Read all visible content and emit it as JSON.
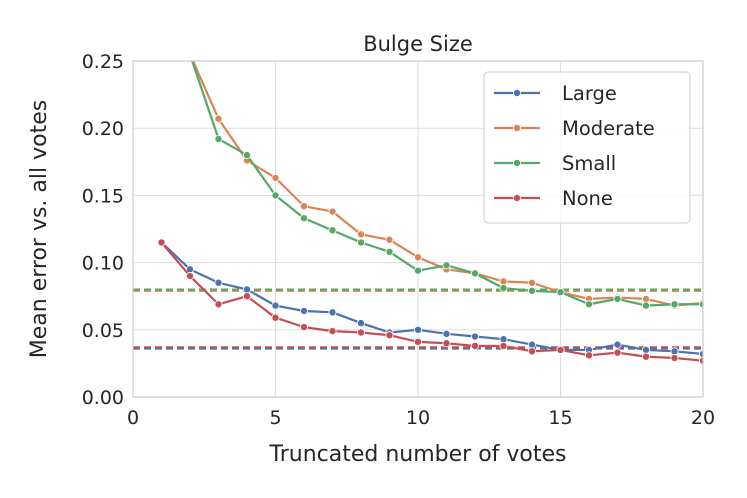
{
  "chart_data": {
    "type": "line",
    "title": "Bulge Size",
    "xlabel": "Truncated number of votes",
    "ylabel": "Mean error vs. all votes",
    "xlim": [
      0,
      20
    ],
    "ylim": [
      0,
      0.25
    ],
    "xticks": [
      0,
      5,
      10,
      15,
      20
    ],
    "xtick_labels": [
      "0",
      "5",
      "10",
      "15",
      "20"
    ],
    "yticks": [
      0,
      0.05,
      0.1,
      0.15,
      0.2,
      0.25
    ],
    "ytick_labels": [
      "0.00",
      "0.05",
      "0.10",
      "0.15",
      "0.20",
      "0.25"
    ],
    "grid": true,
    "legend_position": "top-right",
    "series": [
      {
        "name": "Large",
        "color": "#4c72b0",
        "x": [
          1,
          2,
          3,
          4,
          5,
          6,
          7,
          8,
          9,
          10,
          11,
          12,
          13,
          14,
          15,
          16,
          17,
          18,
          19,
          20
        ],
        "values": [
          0.115,
          0.095,
          0.085,
          0.08,
          0.068,
          0.064,
          0.063,
          0.055,
          0.048,
          0.05,
          0.047,
          0.045,
          0.043,
          0.039,
          0.035,
          0.035,
          0.039,
          0.035,
          0.034,
          0.032
        ],
        "baseline": 0.036
      },
      {
        "name": "Moderate",
        "color": "#dd8452",
        "x": [
          2,
          3,
          4,
          5,
          6,
          7,
          8,
          9,
          10,
          11,
          12,
          13,
          14,
          15,
          16,
          17,
          18,
          19,
          20
        ],
        "values": [
          0.255,
          0.207,
          0.176,
          0.163,
          0.142,
          0.138,
          0.121,
          0.117,
          0.104,
          0.095,
          0.092,
          0.086,
          0.085,
          0.078,
          0.073,
          0.074,
          0.073,
          0.068,
          0.07
        ],
        "baseline": 0.079
      },
      {
        "name": "Small",
        "color": "#55a868",
        "x": [
          2,
          3,
          4,
          5,
          6,
          7,
          8,
          9,
          10,
          11,
          12,
          13,
          14,
          15,
          16,
          17,
          18,
          19,
          20
        ],
        "values": [
          0.255,
          0.192,
          0.18,
          0.15,
          0.133,
          0.124,
          0.115,
          0.108,
          0.094,
          0.098,
          0.092,
          0.081,
          0.079,
          0.078,
          0.069,
          0.073,
          0.068,
          0.069,
          0.069
        ],
        "baseline": 0.08
      },
      {
        "name": "None",
        "color": "#c44e52",
        "x": [
          1,
          2,
          3,
          4,
          5,
          6,
          7,
          8,
          9,
          10,
          11,
          12,
          13,
          14,
          15,
          16,
          17,
          18,
          19,
          20
        ],
        "values": [
          0.115,
          0.09,
          0.069,
          0.075,
          0.059,
          0.052,
          0.049,
          0.048,
          0.046,
          0.041,
          0.04,
          0.038,
          0.038,
          0.034,
          0.035,
          0.031,
          0.033,
          0.03,
          0.029,
          0.027
        ],
        "baseline": 0.037
      }
    ]
  }
}
